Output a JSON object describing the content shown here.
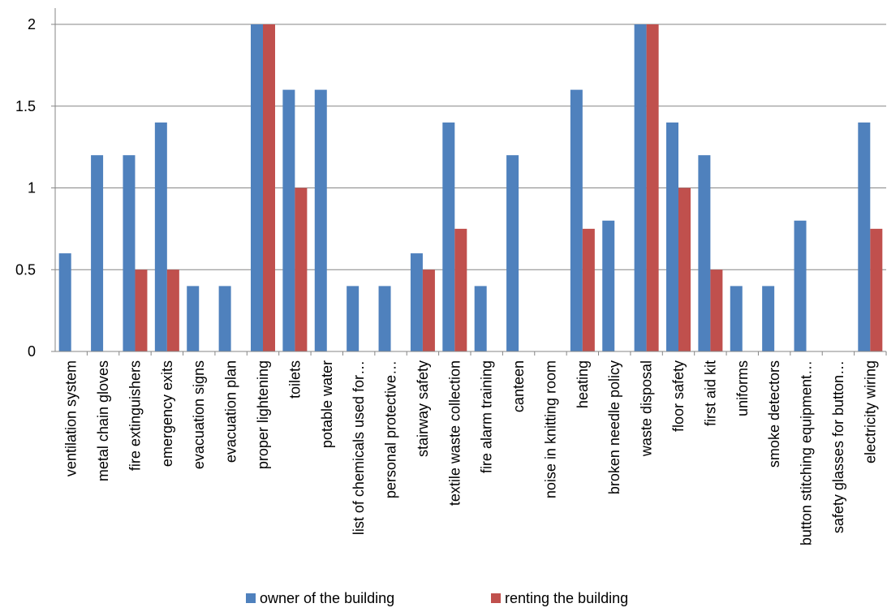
{
  "chart_data": {
    "type": "bar",
    "categories": [
      "ventilation system",
      "metal chain gloves",
      "fire extinguishers",
      "emergency exits",
      "evacuation signs",
      "evacuation plan",
      "proper lightening",
      "toilets",
      "potable water",
      "list of chemicals used for…",
      "personal protective…",
      "stairway safety",
      "textile waste collection",
      "fire alarm training",
      "canteen",
      "noise in knitting room",
      "heating",
      "broken needle policy",
      "waste disposal",
      "floor safety",
      "first aid kit",
      "uniforms",
      "smoke detectors",
      "button stitching equipment…",
      "safety glasses for button…",
      "electricity wiring"
    ],
    "series": [
      {
        "name": "owner of the building",
        "color": "#4F81BD",
        "values": [
          0.6,
          1.2,
          1.2,
          1.4,
          0.4,
          0.4,
          2,
          1.6,
          1.6,
          0.4,
          0.4,
          0.6,
          1.4,
          0.4,
          1.2,
          0,
          1.6,
          0.8,
          2,
          1.4,
          1.2,
          0.4,
          0.4,
          0.8,
          0,
          1.4
        ]
      },
      {
        "name": "renting the building",
        "color": "#C0504D",
        "values": [
          0,
          0,
          0.5,
          0.5,
          0,
          0,
          2,
          1,
          0,
          0,
          0,
          0.5,
          0.75,
          0,
          0,
          0,
          0.75,
          0,
          2,
          1,
          0.5,
          0,
          0,
          0,
          0,
          0.75
        ]
      }
    ],
    "yticks": [
      "0",
      "0.5",
      "1",
      "1.5",
      "2"
    ],
    "ylim": [
      0,
      2
    ],
    "grid": true,
    "legend": "bottom",
    "title": "",
    "xlabel": "",
    "ylabel": ""
  }
}
